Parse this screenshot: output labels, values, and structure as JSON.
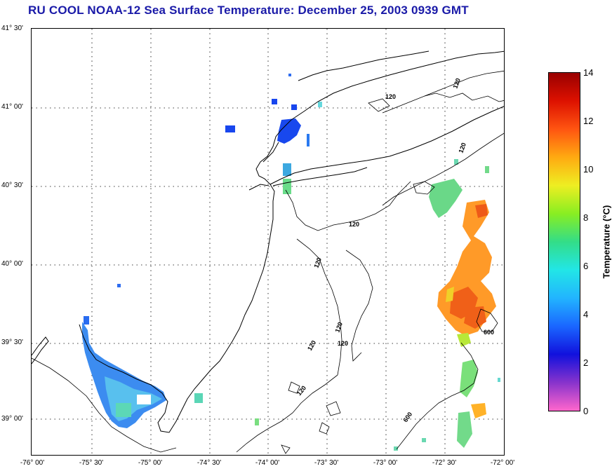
{
  "title": "RU COOL  NOAA-12  Sea Surface Temperature:  December 25, 2003 0939 GMT",
  "lat_labels": [
    "41° 30'",
    "41° 00'",
    "40° 30'",
    "40° 00'",
    "39° 30'",
    "39° 00'"
  ],
  "lon_labels": [
    "-76° 00'",
    "-75° 30'",
    "-75° 00'",
    "-74° 30'",
    "-74° 00'",
    "-73° 30'",
    "-73° 00'",
    "-72° 30'",
    "-72° 00'"
  ],
  "contour_labels": [
    "120",
    "120",
    "120",
    "120",
    "120",
    "120",
    "120",
    "120",
    "120",
    "600",
    "600"
  ],
  "colorbar": {
    "label": "Temperature (°C)",
    "ticks": [
      "14",
      "12",
      "10",
      "8",
      "6",
      "4",
      "2",
      "0"
    ],
    "min": 0,
    "max": 14,
    "colors": [
      "#ff66cc",
      "#8833cc",
      "#1111dd",
      "#1a66ff",
      "#22b4ff",
      "#22e6e6",
      "#33dd88",
      "#88ee22",
      "#eeee22",
      "#ffaa11",
      "#ff5511",
      "#dd1100",
      "#990000"
    ]
  }
}
